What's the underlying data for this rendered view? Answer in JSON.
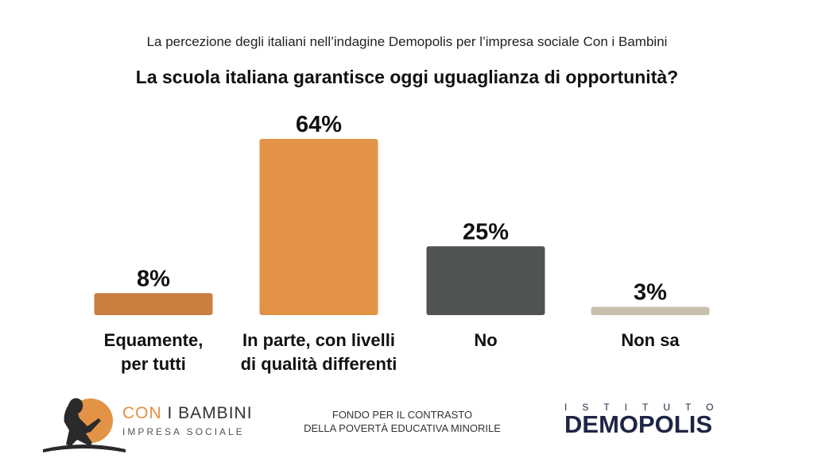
{
  "header": {
    "subtitle": "La percezione degli italiani nell’indagine Demopolis per l’impresa sociale Con i Bambini",
    "title": "La scuola italiana garantisce oggi uguaglianza di opportunità?"
  },
  "chart_data": {
    "type": "bar",
    "categories": [
      "Equamente,\nper tutti",
      "In parte, con livelli\ndi qualità differenti",
      "No",
      "Non sa"
    ],
    "values": [
      8,
      64,
      25,
      3
    ],
    "value_labels": [
      "8%",
      "64%",
      "25%",
      "3%"
    ],
    "colors": [
      "#c97f40",
      "#e29346",
      "#505354",
      "#c9bfad"
    ],
    "ylim": [
      0,
      64
    ],
    "grid": false
  },
  "footer": {
    "left_logo_brand_con": "CON",
    "left_logo_brand_rest": " I BAMBINI",
    "left_logo_sub": "IMPRESA SOCIALE",
    "center_line1": "FONDO PER IL CONTRASTO",
    "center_line2": "DELLA POVERTÀ EDUCATIVA MINORILE",
    "right_logo_top": "ISTITUTO",
    "right_logo_name": "DEMOPOLIS"
  }
}
